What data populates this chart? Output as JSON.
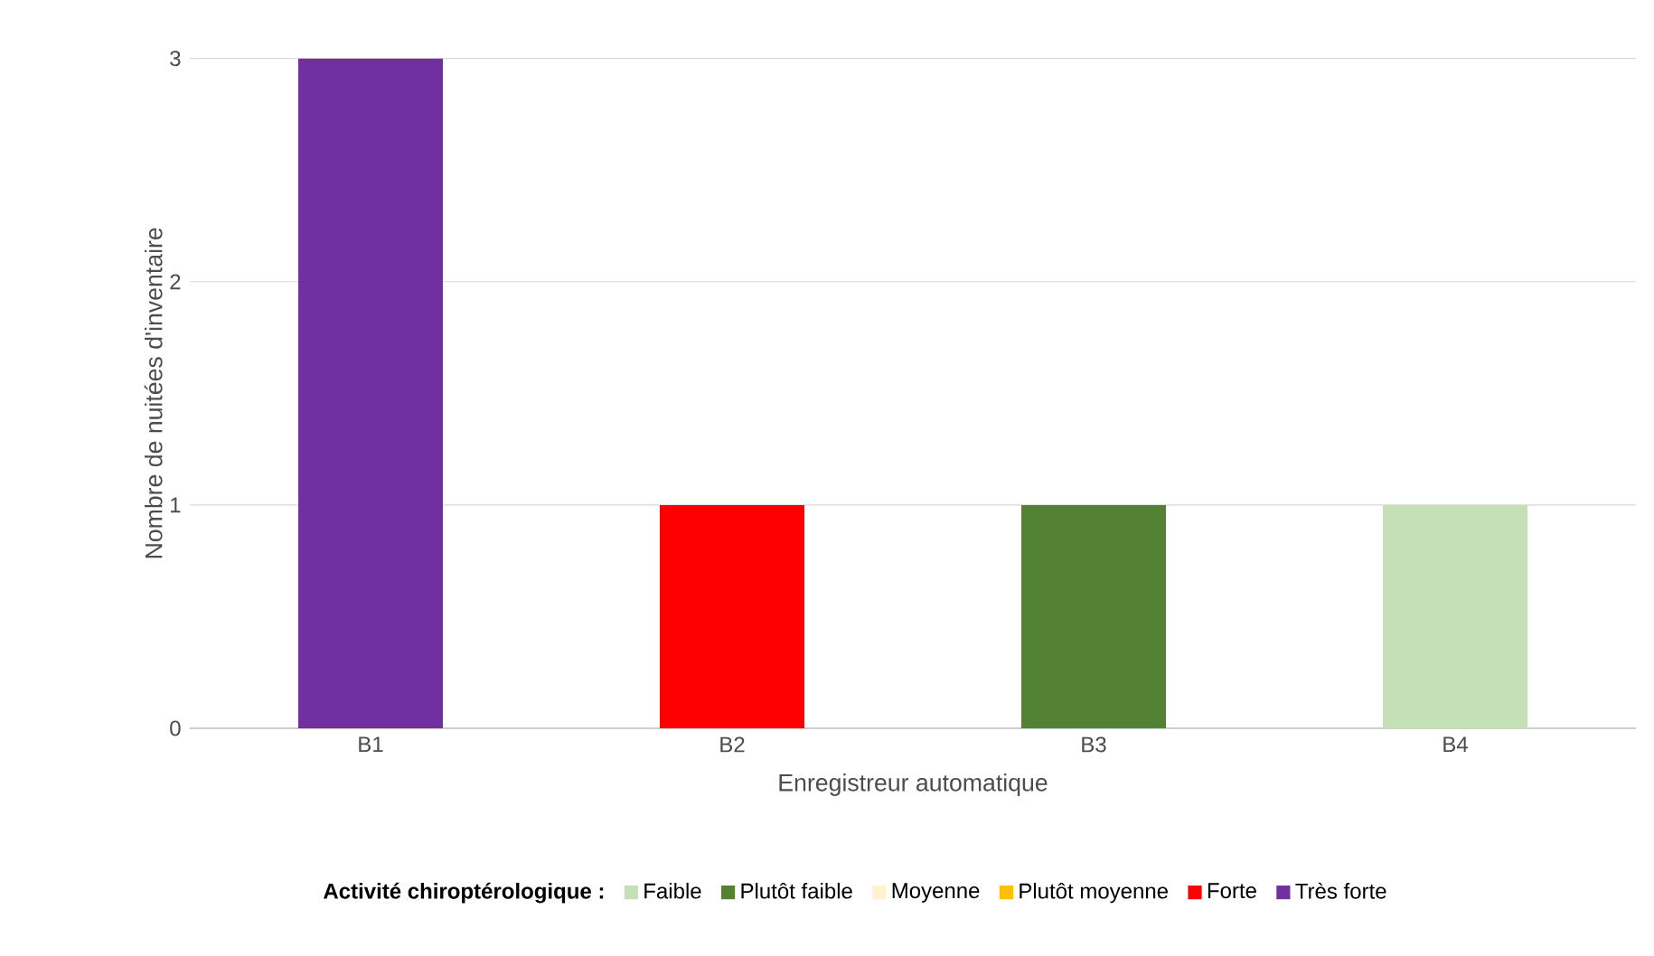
{
  "chart_data": {
    "type": "bar",
    "stacked": true,
    "categories": [
      "B1",
      "B2",
      "B3",
      "B4"
    ],
    "xlabel": "Enregistreur automatique",
    "ylabel": "Nombre de nuitées d'inventaire",
    "legend_title": "**Activité chiroptérologique :**",
    "ylim": [
      0,
      3
    ],
    "yticks": [
      0,
      1,
      2,
      3
    ],
    "grid": "y",
    "legend": "bottom",
    "series": [
      {
        "name": "Faible",
        "color": "#c5e0b4",
        "values": [
          null,
          null,
          null,
          1
        ]
      },
      {
        "name": "Plutôt faible",
        "color": "#548235",
        "values": [
          null,
          null,
          1,
          null
        ]
      },
      {
        "name": "Moyenne",
        "color": "#fff2cc",
        "values": [
          null,
          null,
          null,
          null
        ]
      },
      {
        "name": "Plutôt moyenne",
        "color": "#ffc000",
        "values": [
          null,
          null,
          null,
          null
        ]
      },
      {
        "name": "Forte",
        "color": "#ff0000",
        "values": [
          null,
          1,
          null,
          null
        ]
      },
      {
        "name": "Très forte",
        "color": "#7030a0",
        "values": [
          3,
          null,
          null,
          null
        ]
      }
    ]
  }
}
